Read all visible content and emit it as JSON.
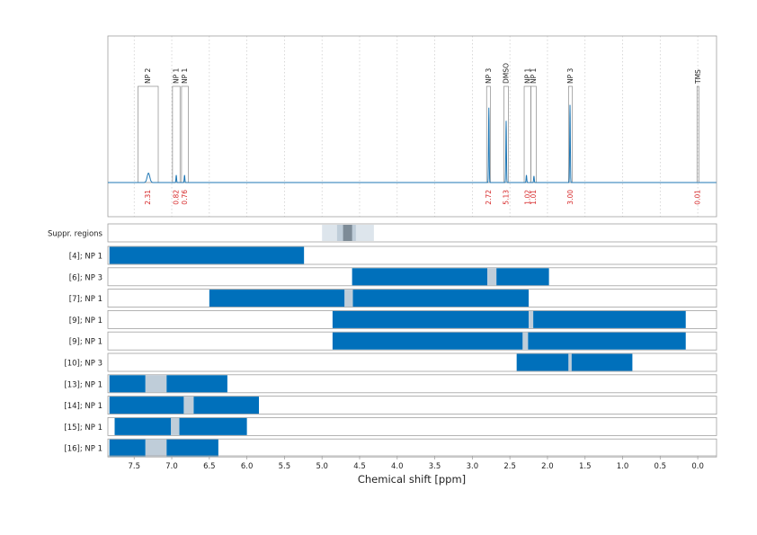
{
  "chart_data": {
    "type": "nmr-spectrum-with-ranges",
    "x_label": "Chemical shift [ppm]",
    "x_axis": {
      "reversed": true,
      "ticks": [
        "7.5",
        "7.0",
        "6.5",
        "6.0",
        "5.5",
        "5.0",
        "4.5",
        "4.0",
        "3.5",
        "3.0",
        "2.5",
        "2.0",
        "1.5",
        "1.0",
        "0.5",
        "0.0"
      ],
      "range_ppm": [
        7.85,
        -0.25
      ]
    },
    "grid": "dotted vertical",
    "colors": {
      "spectrum": "#1f77b4",
      "range_bar": "#0070bb",
      "suppressed": "#bfcdd9",
      "suppressed_dark": "#7d8b97",
      "integral": "#d62728",
      "frame": "#a0a0a0"
    },
    "peaks": [
      {
        "label": "NP 2",
        "region": [
          7.45,
          7.18
        ],
        "integral": "2.31",
        "shift": 7.31,
        "height": 0.1
      },
      {
        "label": "NP 1",
        "region": [
          6.99,
          6.89
        ],
        "integral": "0.82",
        "shift": 6.94,
        "height": 0.08
      },
      {
        "label": "NP 1",
        "region": [
          6.87,
          6.78
        ],
        "integral": "0.76",
        "shift": 6.83,
        "height": 0.08
      },
      {
        "label": "NP 3",
        "region": [
          2.81,
          2.76
        ],
        "integral": "2.72",
        "shift": 2.78,
        "height": 0.8
      },
      {
        "label": "DMSO",
        "region": [
          2.58,
          2.52
        ],
        "integral": "5.13",
        "shift": 2.55,
        "height": 0.66
      },
      {
        "label": "NP 1",
        "region": [
          2.31,
          2.22
        ],
        "integral": "1.02",
        "shift": 2.28,
        "height": 0.08
      },
      {
        "label": "NP 1",
        "region": [
          2.22,
          2.15
        ],
        "integral": "1.01",
        "shift": 2.18,
        "height": 0.07
      },
      {
        "label": "NP 3",
        "region": [
          1.72,
          1.67
        ],
        "integral": "3.00",
        "shift": 1.7,
        "height": 0.83
      },
      {
        "label": "TMS",
        "region": [
          0.01,
          -0.01
        ],
        "integral": "0.01",
        "shift": 0.0,
        "height": 0.0
      }
    ],
    "suppression": {
      "label": "Suppr. regions",
      "region": [
        5.0,
        4.31
      ],
      "inner": [
        4.8,
        4.55
      ],
      "core": [
        4.72,
        4.6
      ]
    },
    "ranges": [
      {
        "label": "[4]; NP 1",
        "bars": [
          [
            7.83,
            5.24
          ]
        ]
      },
      {
        "label": "[6]; NP 3",
        "bars": [
          [
            4.6,
            2.8
          ],
          [
            2.68,
            1.98
          ]
        ],
        "gaps": [
          [
            2.8,
            2.68
          ]
        ]
      },
      {
        "label": "[7]; NP 1",
        "bars": [
          [
            6.5,
            4.7
          ],
          [
            4.59,
            2.25
          ]
        ],
        "gaps": [
          [
            4.7,
            4.59
          ]
        ]
      },
      {
        "label": "[9]; NP 1",
        "bars": [
          [
            4.86,
            2.25
          ],
          [
            2.19,
            0.16
          ]
        ],
        "gaps": [
          [
            2.25,
            2.19
          ]
        ]
      },
      {
        "label": "[9]; NP 1",
        "bars": [
          [
            4.86,
            2.33
          ],
          [
            2.26,
            0.16
          ]
        ],
        "gaps": [
          [
            2.33,
            2.26
          ]
        ]
      },
      {
        "label": "[10]; NP 3",
        "bars": [
          [
            2.41,
            1.72
          ],
          [
            1.68,
            0.87
          ]
        ],
        "gaps": [
          [
            1.72,
            1.68
          ]
        ]
      },
      {
        "label": "[13]; NP 1",
        "bars": [
          [
            7.83,
            7.35
          ],
          [
            7.07,
            6.26
          ]
        ],
        "gaps": [
          [
            7.35,
            7.07
          ]
        ]
      },
      {
        "label": "[14]; NP 1",
        "bars": [
          [
            7.83,
            6.84
          ],
          [
            6.71,
            5.84
          ]
        ],
        "gaps": [
          [
            6.84,
            6.71
          ]
        ]
      },
      {
        "label": "[15]; NP 1",
        "bars": [
          [
            7.76,
            7.01
          ],
          [
            6.9,
            6.0
          ]
        ],
        "gaps": [
          [
            7.01,
            6.9
          ]
        ]
      },
      {
        "label": "[16]; NP 1",
        "bars": [
          [
            7.83,
            7.35
          ],
          [
            7.07,
            6.38
          ]
        ],
        "gaps": [
          [
            7.35,
            7.07
          ]
        ]
      }
    ]
  }
}
